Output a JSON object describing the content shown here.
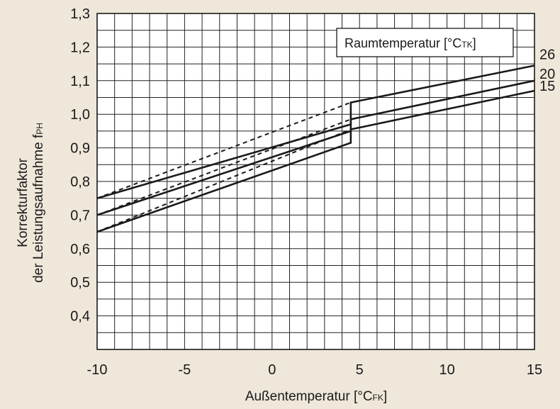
{
  "chart_data": {
    "type": "line",
    "xlabel": "Außentemperatur [°CFK]",
    "xlabel_main": "Außentemperatur [°C",
    "xlabel_sub": "FK",
    "xlabel_end": "]",
    "ylabel_line1": "Korrekturfaktor",
    "ylabel_line2_main": "der Leistungsaufnahme f",
    "ylabel_line2_sub": "PH",
    "xlim": [
      -10,
      15
    ],
    "ylim": [
      0.3,
      1.3
    ],
    "x_ticks": [
      "-10",
      "-5",
      "0",
      "5",
      "10",
      "15"
    ],
    "y_ticks": [
      "0,4",
      "0,5",
      "0,6",
      "0,7",
      "0,8",
      "0,9",
      "1,0",
      "1,1",
      "1,2",
      "1,3"
    ],
    "grid": true,
    "legend": {
      "title_main": "Raumtemperatur [°C",
      "title_sub": "TK",
      "title_end": "]",
      "placement": "top-right"
    },
    "series": [
      {
        "name": "26",
        "style": "solid",
        "points": [
          [
            -10,
            0.75
          ],
          [
            4.5,
            0.97
          ],
          [
            4.5,
            1.035
          ],
          [
            15,
            1.145
          ]
        ]
      },
      {
        "name": "20",
        "style": "solid",
        "points": [
          [
            -10,
            0.7
          ],
          [
            4.5,
            0.95
          ],
          [
            4.5,
            0.985
          ],
          [
            15,
            1.1
          ]
        ]
      },
      {
        "name": "15",
        "style": "solid",
        "points": [
          [
            -10,
            0.65
          ],
          [
            4.5,
            0.915
          ],
          [
            4.5,
            0.955
          ],
          [
            15,
            1.07
          ]
        ]
      },
      {
        "name": "",
        "style": "dashed",
        "points": [
          [
            -10,
            0.75
          ],
          [
            4.5,
            1.035
          ]
        ]
      },
      {
        "name": "",
        "style": "dashed",
        "points": [
          [
            -10,
            0.7
          ],
          [
            4.5,
            0.985
          ]
        ]
      },
      {
        "name": "",
        "style": "dashed",
        "points": [
          [
            -10,
            0.65
          ],
          [
            4.5,
            0.955
          ]
        ]
      }
    ]
  },
  "colors": {
    "background": "#eee7da",
    "plot_background": "#ffffff",
    "grid": "#222222",
    "line": "#1a1a1a"
  }
}
